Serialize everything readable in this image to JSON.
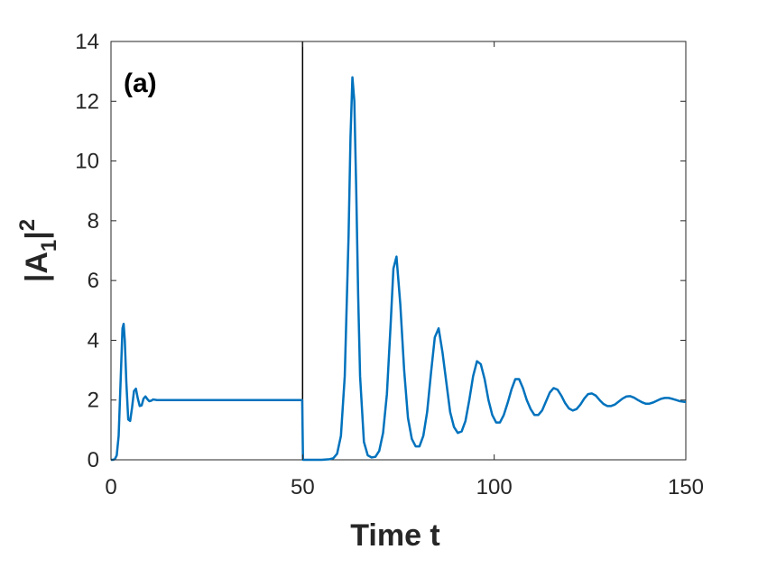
{
  "chart_data": {
    "type": "line",
    "panel_label": "(a)",
    "xlabel": "Time t",
    "ylabel": {
      "base": "|A",
      "subscript": "1",
      "suffix": "|",
      "superscript": "2"
    },
    "xlim": [
      0,
      150
    ],
    "ylim": [
      0,
      14
    ],
    "xticks": [
      0,
      50,
      100,
      150
    ],
    "yticks": [
      0,
      2,
      4,
      6,
      8,
      10,
      12,
      14
    ],
    "grid": false,
    "box": true,
    "line_color": "#0072BD",
    "marker_line": {
      "x": 50,
      "color": "#000000"
    },
    "series": [
      {
        "x": [
          0,
          0.5,
          1,
          1.5,
          2,
          2.5,
          3,
          3.3,
          3.6,
          4,
          4.5,
          5,
          5.5,
          6,
          6.5,
          7,
          7.5,
          8,
          8.5,
          9,
          9.5,
          10,
          10.5,
          11,
          12,
          14,
          20,
          30,
          40,
          49.9,
          50.1,
          52,
          55,
          57,
          58,
          59,
          60,
          61,
          62,
          62.5,
          63,
          63.5,
          64,
          64.5,
          65,
          66,
          67,
          68,
          69,
          70,
          71,
          72,
          73,
          73.7,
          74.5,
          75.5,
          76.5,
          77.5,
          78.5,
          79.5,
          80.5,
          81.5,
          82.5,
          83.5,
          84.5,
          85.5,
          86.5,
          87.5,
          88.5,
          89.5,
          90.5,
          91.5,
          92.5,
          93.5,
          94.5,
          95.5,
          96.5,
          97.5,
          98.5,
          99.5,
          100.5,
          101.5,
          102.5,
          103.5,
          104.5,
          105.5,
          106.5,
          107.5,
          108.5,
          109.5,
          110.5,
          111.5,
          112.5,
          113.5,
          114.5,
          115.5,
          116.5,
          117.5,
          118.5,
          119.5,
          120.5,
          121.5,
          122.5,
          123.5,
          124.5,
          125.5,
          126.5,
          127.5,
          128.5,
          129.5,
          130.5,
          131.5,
          132.5,
          133.5,
          134.5,
          135.5,
          136.5,
          137.5,
          138.5,
          139.5,
          140.5,
          141.5,
          142.5,
          143.5,
          144.5,
          145.5,
          146.5,
          147.5,
          148.5,
          149.5,
          150
        ],
        "y": [
          0,
          0,
          0.02,
          0.15,
          0.8,
          2.6,
          4.4,
          4.55,
          4.0,
          2.6,
          1.35,
          1.3,
          1.75,
          2.3,
          2.38,
          2.05,
          1.8,
          1.82,
          2.05,
          2.12,
          2.03,
          1.96,
          1.98,
          2.02,
          2.0,
          2.0,
          2.0,
          2.0,
          2.0,
          2.0,
          0,
          0,
          0,
          0.02,
          0.05,
          0.2,
          0.8,
          2.8,
          7.5,
          10.8,
          12.8,
          12.0,
          9.0,
          5.5,
          2.8,
          0.6,
          0.15,
          0.08,
          0.1,
          0.3,
          0.9,
          2.2,
          4.6,
          6.4,
          6.8,
          5.2,
          3.0,
          1.4,
          0.7,
          0.45,
          0.45,
          0.8,
          1.6,
          2.9,
          4.1,
          4.4,
          3.6,
          2.6,
          1.6,
          1.1,
          0.9,
          0.95,
          1.3,
          2.0,
          2.8,
          3.3,
          3.2,
          2.7,
          2.0,
          1.5,
          1.25,
          1.25,
          1.5,
          1.9,
          2.35,
          2.7,
          2.7,
          2.4,
          2.0,
          1.7,
          1.5,
          1.5,
          1.65,
          1.95,
          2.25,
          2.4,
          2.35,
          2.15,
          1.9,
          1.72,
          1.65,
          1.7,
          1.85,
          2.05,
          2.2,
          2.22,
          2.15,
          2.0,
          1.87,
          1.8,
          1.8,
          1.85,
          1.95,
          2.05,
          2.12,
          2.13,
          2.08,
          2.0,
          1.93,
          1.88,
          1.88,
          1.92,
          1.98,
          2.04,
          2.07,
          2.07,
          2.04,
          2.0,
          1.96,
          1.94,
          1.94
        ]
      }
    ]
  }
}
